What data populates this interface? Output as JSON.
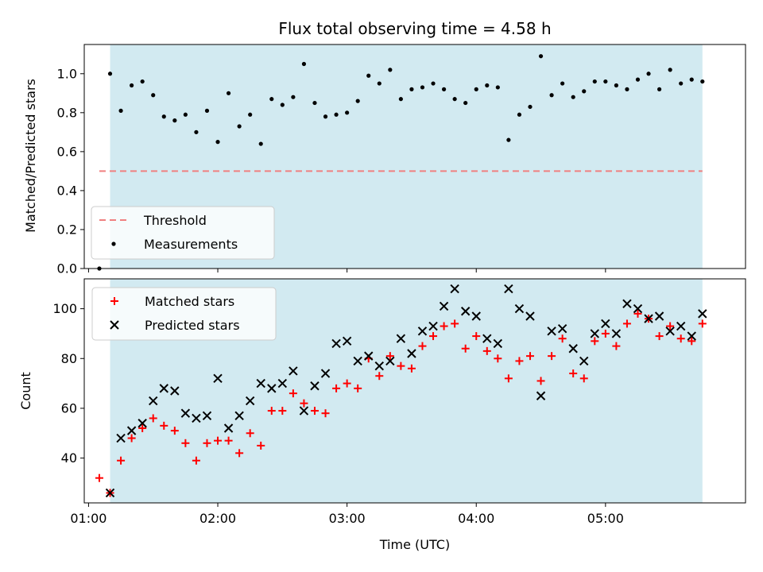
{
  "chart_data": [
    {
      "type": "scatter",
      "title": "Flux total observing time = 4.58 h",
      "xlabel": "",
      "ylabel": "Matched/Predicted stars",
      "ylim": [
        0,
        1.15
      ],
      "yticks": [
        0.0,
        0.2,
        0.4,
        0.6,
        0.8,
        1.0
      ],
      "ytick_labels": [
        "0.0",
        "0.2",
        "0.4",
        "0.6",
        "0.8",
        "1.0"
      ],
      "xlim": [
        "00:58",
        "06:05"
      ],
      "observing_span": [
        "01:10",
        "05:45"
      ],
      "span_color": "#add8e6",
      "threshold": {
        "name": "Threshold",
        "value": 0.5,
        "x_range": [
          "01:05",
          "05:45"
        ],
        "color": "#f08080"
      },
      "legend": {
        "placement": "lower-left",
        "entries": [
          "Threshold",
          "Measurements"
        ]
      },
      "series": [
        {
          "name": "Measurements",
          "color": "#000000",
          "x": [
            "01:05",
            "01:10",
            "01:15",
            "01:20",
            "01:25",
            "01:30",
            "01:35",
            "01:40",
            "01:45",
            "01:50",
            "01:55",
            "02:00",
            "02:05",
            "02:10",
            "02:15",
            "02:20",
            "02:25",
            "02:30",
            "02:35",
            "02:40",
            "02:45",
            "02:50",
            "02:55",
            "03:00",
            "03:05",
            "03:10",
            "03:15",
            "03:20",
            "03:25",
            "03:30",
            "03:35",
            "03:40",
            "03:45",
            "03:50",
            "03:55",
            "04:00",
            "04:05",
            "04:10",
            "04:15",
            "04:20",
            "04:25",
            "04:30",
            "04:35",
            "04:40",
            "04:45",
            "04:50",
            "04:55",
            "05:00",
            "05:05",
            "05:10",
            "05:15",
            "05:20",
            "05:25",
            "05:30",
            "05:35",
            "05:40",
            "05:45"
          ],
          "values": [
            0.0,
            1.0,
            0.81,
            0.94,
            0.96,
            0.89,
            0.78,
            0.76,
            0.79,
            0.7,
            0.81,
            0.65,
            0.9,
            0.73,
            0.79,
            0.64,
            0.87,
            0.84,
            0.88,
            1.05,
            0.85,
            0.78,
            0.79,
            0.8,
            0.86,
            0.99,
            0.95,
            1.02,
            0.87,
            0.92,
            0.93,
            0.95,
            0.92,
            0.87,
            0.85,
            0.92,
            0.94,
            0.93,
            0.66,
            0.79,
            0.83,
            1.09,
            0.89,
            0.95,
            0.88,
            0.91,
            0.96,
            0.96,
            0.94,
            0.92,
            0.97,
            1.0,
            0.92,
            1.02,
            0.95,
            0.97,
            0.96
          ]
        }
      ]
    },
    {
      "type": "scatter",
      "title": "",
      "xlabel": "Time (UTC)",
      "ylabel": "Count",
      "ylim": [
        22,
        112
      ],
      "yticks": [
        40,
        60,
        80,
        100
      ],
      "ytick_labels": [
        "40",
        "60",
        "80",
        "100"
      ],
      "xlim": [
        "00:58",
        "06:05"
      ],
      "xticks": [
        "01:00",
        "02:00",
        "03:00",
        "04:00",
        "05:00"
      ],
      "xtick_labels": [
        "01:00",
        "02:00",
        "03:00",
        "04:00",
        "05:00"
      ],
      "observing_span": [
        "01:10",
        "05:45"
      ],
      "span_color": "#add8e6",
      "legend": {
        "placement": "upper-left",
        "entries": [
          "Matched stars",
          "Predicted stars"
        ]
      },
      "series": [
        {
          "name": "Matched stars",
          "marker": "+",
          "color": "#ff0000",
          "x": [
            "01:05",
            "01:10",
            "01:15",
            "01:20",
            "01:25",
            "01:30",
            "01:35",
            "01:40",
            "01:45",
            "01:50",
            "01:55",
            "02:00",
            "02:05",
            "02:10",
            "02:15",
            "02:20",
            "02:25",
            "02:30",
            "02:35",
            "02:40",
            "02:45",
            "02:50",
            "02:55",
            "03:00",
            "03:05",
            "03:10",
            "03:15",
            "03:20",
            "03:25",
            "03:30",
            "03:35",
            "03:40",
            "03:45",
            "03:50",
            "03:55",
            "04:00",
            "04:05",
            "04:10",
            "04:15",
            "04:20",
            "04:25",
            "04:30",
            "04:35",
            "04:40",
            "04:45",
            "04:50",
            "04:55",
            "05:00",
            "05:05",
            "05:10",
            "05:15",
            "05:20",
            "05:25",
            "05:30",
            "05:35",
            "05:40",
            "05:45"
          ],
          "values": [
            32,
            26,
            39,
            48,
            52,
            56,
            53,
            51,
            46,
            39,
            46,
            47,
            47,
            42,
            50,
            45,
            59,
            59,
            66,
            62,
            59,
            58,
            68,
            70,
            68,
            80,
            73,
            81,
            77,
            76,
            85,
            89,
            93,
            94,
            84,
            89,
            83,
            80,
            72,
            79,
            81,
            71,
            81,
            88,
            74,
            72,
            87,
            90,
            85,
            94,
            98,
            96,
            89,
            93,
            88,
            87,
            94
          ]
        },
        {
          "name": "Predicted stars",
          "marker": "x",
          "color": "#000000",
          "x": [
            "01:10",
            "01:15",
            "01:20",
            "01:25",
            "01:30",
            "01:35",
            "01:40",
            "01:45",
            "01:50",
            "01:55",
            "02:00",
            "02:05",
            "02:10",
            "02:15",
            "02:20",
            "02:25",
            "02:30",
            "02:35",
            "02:40",
            "02:45",
            "02:50",
            "02:55",
            "03:00",
            "03:05",
            "03:10",
            "03:15",
            "03:20",
            "03:25",
            "03:30",
            "03:35",
            "03:40",
            "03:45",
            "03:50",
            "03:55",
            "04:00",
            "04:05",
            "04:10",
            "04:15",
            "04:20",
            "04:25",
            "04:30",
            "04:35",
            "04:40",
            "04:45",
            "04:50",
            "04:55",
            "05:00",
            "05:05",
            "05:10",
            "05:15",
            "05:20",
            "05:25",
            "05:30",
            "05:35",
            "05:40",
            "05:45"
          ],
          "values": [
            26,
            48,
            51,
            54,
            63,
            68,
            67,
            58,
            56,
            57,
            72,
            52,
            57,
            63,
            70,
            68,
            70,
            75,
            59,
            69,
            74,
            86,
            87,
            79,
            81,
            77,
            79,
            88,
            82,
            91,
            93,
            101,
            108,
            99,
            97,
            88,
            86,
            108,
            100,
            97,
            65,
            91,
            92,
            84,
            79,
            90,
            94,
            90,
            102,
            100,
            96,
            97,
            91,
            93,
            89,
            98
          ]
        }
      ]
    }
  ]
}
